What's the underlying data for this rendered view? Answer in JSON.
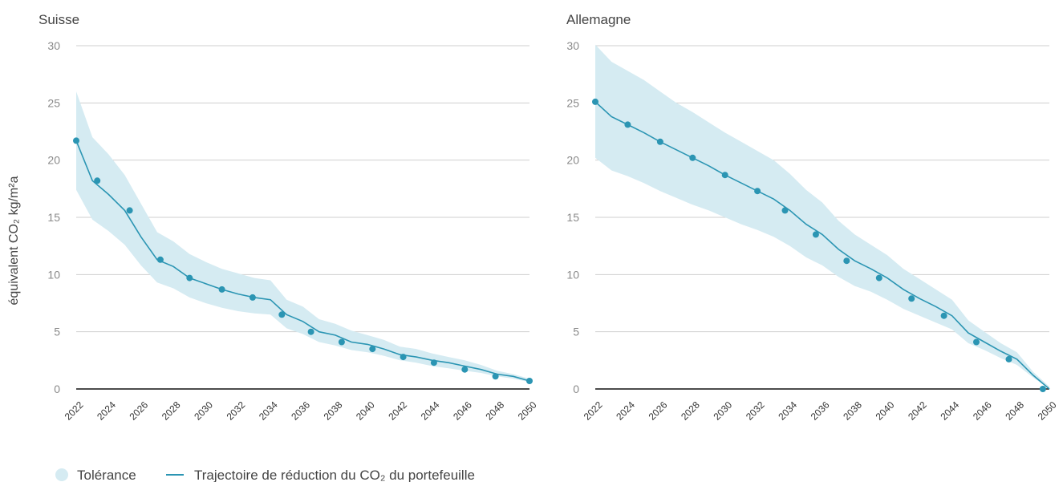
{
  "chart_data": [
    {
      "type": "line",
      "title": "Suisse",
      "ylabel": "équivalent CO₂ kg/m²a",
      "ylim": [
        0,
        30
      ],
      "yticks": [
        0,
        5,
        10,
        15,
        20,
        25,
        30
      ],
      "xlim": [
        2022,
        2050
      ],
      "xticks": [
        2022,
        2024,
        2026,
        2028,
        2030,
        2032,
        2034,
        2036,
        2038,
        2040,
        2042,
        2044,
        2046,
        2048,
        2050
      ],
      "grid": true,
      "series": [
        {
          "name": "Trajectoire de réduction du CO₂ du portefeuille",
          "x": [
            2022,
            2023,
            2024,
            2025,
            2026,
            2027,
            2028,
            2029,
            2030,
            2031,
            2032,
            2033,
            2034,
            2035,
            2036,
            2037,
            2038,
            2039,
            2040,
            2041,
            2042,
            2043,
            2044,
            2045,
            2046,
            2047,
            2048,
            2049,
            2050
          ],
          "y": [
            21.7,
            18.2,
            17.0,
            15.6,
            13.3,
            11.3,
            10.7,
            9.7,
            9.2,
            8.7,
            8.3,
            8.0,
            7.8,
            6.5,
            5.9,
            5.0,
            4.7,
            4.1,
            3.9,
            3.5,
            3.0,
            2.8,
            2.5,
            2.3,
            2.0,
            1.7,
            1.3,
            1.1,
            0.7
          ],
          "markers_x": [
            2022,
            2023.3,
            2025.3,
            2027.2,
            2029,
            2031,
            2032.9,
            2034.7,
            2036.5,
            2038.4,
            2040.3,
            2042.2,
            2044.1,
            2046,
            2047.9,
            2050
          ],
          "markers_y": [
            21.7,
            18.2,
            15.6,
            11.3,
            9.7,
            8.7,
            8.0,
            6.5,
            5.0,
            4.1,
            3.5,
            2.8,
            2.3,
            1.7,
            1.1,
            0.7
          ]
        },
        {
          "name": "Tolérance",
          "x": [
            2022,
            2023,
            2024,
            2025,
            2026,
            2027,
            2028,
            2029,
            2030,
            2031,
            2032,
            2033,
            2034,
            2035,
            2036,
            2037,
            2038,
            2039,
            2040,
            2041,
            2042,
            2043,
            2044,
            2045,
            2046,
            2047,
            2048,
            2049,
            2050
          ],
          "upper": [
            26.0,
            22.0,
            20.5,
            18.7,
            16.2,
            13.7,
            12.9,
            11.8,
            11.1,
            10.5,
            10.1,
            9.7,
            9.5,
            7.8,
            7.2,
            6.1,
            5.7,
            5.1,
            4.7,
            4.3,
            3.7,
            3.5,
            3.1,
            2.8,
            2.5,
            2.1,
            1.6,
            1.3,
            0.9
          ],
          "lower": [
            17.4,
            14.8,
            13.8,
            12.6,
            10.8,
            9.3,
            8.8,
            8.0,
            7.5,
            7.1,
            6.8,
            6.6,
            6.5,
            5.3,
            4.8,
            4.1,
            3.8,
            3.4,
            3.2,
            2.9,
            2.5,
            2.3,
            2.0,
            1.8,
            1.6,
            1.4,
            1.1,
            0.9,
            0.6
          ]
        }
      ]
    },
    {
      "type": "line",
      "title": "Allemagne",
      "ylim": [
        0,
        30
      ],
      "yticks": [
        0,
        5,
        10,
        15,
        20,
        25,
        30
      ],
      "xlim": [
        2022,
        2050
      ],
      "xticks": [
        2022,
        2024,
        2026,
        2028,
        2030,
        2032,
        2034,
        2036,
        2038,
        2040,
        2042,
        2044,
        2046,
        2048,
        2050
      ],
      "grid": true,
      "series": [
        {
          "name": "Trajectoire de réduction du CO₂ du portefeuille",
          "x": [
            2022,
            2023,
            2024,
            2025,
            2026,
            2027,
            2028,
            2029,
            2030,
            2031,
            2032,
            2033,
            2034,
            2035,
            2036,
            2037,
            2038,
            2039,
            2040,
            2041,
            2042,
            2043,
            2044,
            2045,
            2046,
            2047,
            2048,
            2049,
            2050
          ],
          "y": [
            25.1,
            23.8,
            23.1,
            22.4,
            21.6,
            20.9,
            20.2,
            19.5,
            18.7,
            18.0,
            17.3,
            16.6,
            15.6,
            14.4,
            13.5,
            12.2,
            11.2,
            10.5,
            9.7,
            8.7,
            7.9,
            7.2,
            6.4,
            4.9,
            4.1,
            3.3,
            2.6,
            1.2,
            0.0
          ],
          "markers_x": [
            2022,
            2024,
            2026,
            2028,
            2030,
            2032,
            2033.7,
            2035.6,
            2037.5,
            2039.5,
            2041.5,
            2043.5,
            2045.5,
            2047.5,
            2049.6
          ],
          "markers_y": [
            25.1,
            23.1,
            21.6,
            20.2,
            18.7,
            17.3,
            15.6,
            13.5,
            11.2,
            9.7,
            7.9,
            6.4,
            4.1,
            2.6,
            0.0
          ]
        },
        {
          "name": "Tolérance",
          "x": [
            2022,
            2023,
            2024,
            2025,
            2026,
            2027,
            2028,
            2029,
            2030,
            2031,
            2032,
            2033,
            2034,
            2035,
            2036,
            2037,
            2038,
            2039,
            2040,
            2041,
            2042,
            2043,
            2044,
            2045,
            2046,
            2047,
            2048,
            2049,
            2050
          ],
          "upper": [
            30.1,
            28.6,
            27.8,
            27.0,
            26.0,
            25.0,
            24.2,
            23.3,
            22.4,
            21.6,
            20.8,
            20.0,
            18.8,
            17.4,
            16.3,
            14.7,
            13.5,
            12.6,
            11.7,
            10.5,
            9.6,
            8.7,
            7.8,
            6.0,
            5.0,
            4.0,
            3.2,
            1.5,
            0.2
          ],
          "lower": [
            20.2,
            19.1,
            18.6,
            18.0,
            17.3,
            16.7,
            16.1,
            15.6,
            15.0,
            14.4,
            13.9,
            13.3,
            12.5,
            11.5,
            10.8,
            9.8,
            9.0,
            8.5,
            7.8,
            7.0,
            6.4,
            5.8,
            5.2,
            4.0,
            3.4,
            2.7,
            2.1,
            1.0,
            0.0
          ]
        }
      ]
    }
  ],
  "legend": {
    "items": [
      {
        "label": "Tolérance",
        "kind": "circle",
        "color": "#d5ebf2"
      },
      {
        "label": "Trajectoire de réduction du CO₂ du portefeuille",
        "kind": "line",
        "color": "#2b95b3"
      }
    ]
  },
  "colors": {
    "band": "#d5ebf2",
    "line": "#2b95b3",
    "grid": "#cfcfcf",
    "zero_axis": "#111111"
  }
}
